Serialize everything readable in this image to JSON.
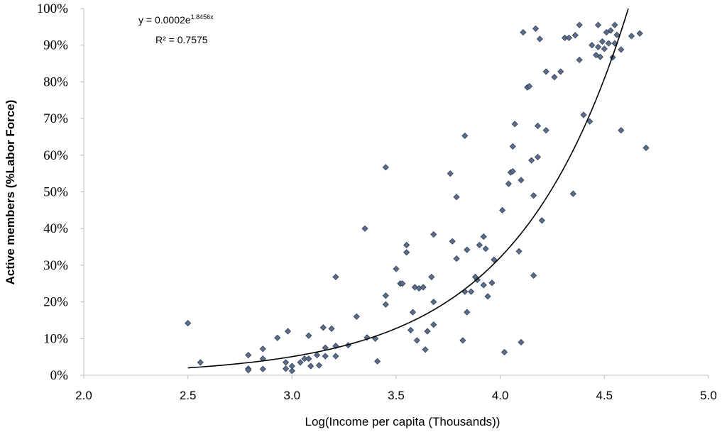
{
  "chart_data": {
    "type": "scatter",
    "xlabel": "Log(Income per capita (Thousands))",
    "ylabel": "Active members (%Labor Force)",
    "xlim": [
      2.0,
      5.0
    ],
    "ylim": [
      0,
      1.0
    ],
    "x_ticks": [
      "2.0",
      "2.5",
      "3.0",
      "3.5",
      "4.0",
      "4.5",
      "5.0"
    ],
    "y_ticks": [
      "0%",
      "10%",
      "20%",
      "30%",
      "40%",
      "50%",
      "60%",
      "70%",
      "80%",
      "90%",
      "100%"
    ],
    "grid": false,
    "marker_color": "#5b6f8c",
    "trendline": {
      "type": "exponential",
      "a": 0.0002,
      "b": 1.8456,
      "equation_base": "y = 0.0002e",
      "equation_exp": "1.8456x",
      "r2_text": "R² = 0.7575"
    },
    "points": [
      [
        2.5,
        0.142
      ],
      [
        2.56,
        0.035
      ],
      [
        2.79,
        0.055
      ],
      [
        2.79,
        0.018
      ],
      [
        2.79,
        0.014
      ],
      [
        2.86,
        0.072
      ],
      [
        2.86,
        0.045
      ],
      [
        2.86,
        0.017
      ],
      [
        2.93,
        0.102
      ],
      [
        2.97,
        0.035
      ],
      [
        2.97,
        0.018
      ],
      [
        2.98,
        0.12
      ],
      [
        3.0,
        0.025
      ],
      [
        3.0,
        0.012
      ],
      [
        3.04,
        0.035
      ],
      [
        3.06,
        0.045
      ],
      [
        3.08,
        0.108
      ],
      [
        3.08,
        0.045
      ],
      [
        3.09,
        0.025
      ],
      [
        3.12,
        0.055
      ],
      [
        3.13,
        0.027
      ],
      [
        3.15,
        0.13
      ],
      [
        3.16,
        0.075
      ],
      [
        3.16,
        0.052
      ],
      [
        3.19,
        0.127
      ],
      [
        3.21,
        0.268
      ],
      [
        3.21,
        0.08
      ],
      [
        3.21,
        0.052
      ],
      [
        3.27,
        0.082
      ],
      [
        3.31,
        0.16
      ],
      [
        3.35,
        0.4
      ],
      [
        3.36,
        0.103
      ],
      [
        3.4,
        0.1
      ],
      [
        3.41,
        0.038
      ],
      [
        3.45,
        0.567
      ],
      [
        3.45,
        0.217
      ],
      [
        3.45,
        0.193
      ],
      [
        3.5,
        0.29
      ],
      [
        3.52,
        0.25
      ],
      [
        3.53,
        0.25
      ],
      [
        3.55,
        0.355
      ],
      [
        3.55,
        0.335
      ],
      [
        3.57,
        0.123
      ],
      [
        3.58,
        0.172
      ],
      [
        3.59,
        0.24
      ],
      [
        3.6,
        0.095
      ],
      [
        3.61,
        0.237
      ],
      [
        3.63,
        0.24
      ],
      [
        3.64,
        0.07
      ],
      [
        3.65,
        0.12
      ],
      [
        3.67,
        0.268
      ],
      [
        3.68,
        0.384
      ],
      [
        3.68,
        0.2
      ],
      [
        3.68,
        0.138
      ],
      [
        3.76,
        0.55
      ],
      [
        3.77,
        0.365
      ],
      [
        3.79,
        0.486
      ],
      [
        3.79,
        0.318
      ],
      [
        3.82,
        0.095
      ],
      [
        3.83,
        0.653
      ],
      [
        3.83,
        0.228
      ],
      [
        3.84,
        0.172
      ],
      [
        3.84,
        0.342
      ],
      [
        3.86,
        0.228
      ],
      [
        3.88,
        0.268
      ],
      [
        3.89,
        0.26
      ],
      [
        3.9,
        0.355
      ],
      [
        3.92,
        0.378
      ],
      [
        3.92,
        0.246
      ],
      [
        3.93,
        0.345
      ],
      [
        3.94,
        0.215
      ],
      [
        3.96,
        0.252
      ],
      [
        3.97,
        0.315
      ],
      [
        4.01,
        0.45
      ],
      [
        4.02,
        0.063
      ],
      [
        4.04,
        0.522
      ],
      [
        4.05,
        0.553
      ],
      [
        4.06,
        0.556
      ],
      [
        4.06,
        0.624
      ],
      [
        4.07,
        0.685
      ],
      [
        4.09,
        0.338
      ],
      [
        4.1,
        0.532
      ],
      [
        4.1,
        0.09
      ],
      [
        4.11,
        0.935
      ],
      [
        4.13,
        0.785
      ],
      [
        4.14,
        0.788
      ],
      [
        4.15,
        0.586
      ],
      [
        4.16,
        0.49
      ],
      [
        4.16,
        0.272
      ],
      [
        4.17,
        0.945
      ],
      [
        4.18,
        0.68
      ],
      [
        4.18,
        0.595
      ],
      [
        4.19,
        0.917
      ],
      [
        4.2,
        0.422
      ],
      [
        4.22,
        0.828
      ],
      [
        4.22,
        0.668
      ],
      [
        4.26,
        0.813
      ],
      [
        4.29,
        0.828
      ],
      [
        4.31,
        0.92
      ],
      [
        4.33,
        0.92
      ],
      [
        4.35,
        0.495
      ],
      [
        4.36,
        0.927
      ],
      [
        4.38,
        0.86
      ],
      [
        4.38,
        0.955
      ],
      [
        4.4,
        0.71
      ],
      [
        4.43,
        0.692
      ],
      [
        4.44,
        0.9
      ],
      [
        4.46,
        0.873
      ],
      [
        4.47,
        0.955
      ],
      [
        4.47,
        0.895
      ],
      [
        4.48,
        0.868
      ],
      [
        4.49,
        0.91
      ],
      [
        4.5,
        0.89
      ],
      [
        4.51,
        0.935
      ],
      [
        4.52,
        0.905
      ],
      [
        4.53,
        0.94
      ],
      [
        4.54,
        0.867
      ],
      [
        4.55,
        0.905
      ],
      [
        4.55,
        0.955
      ],
      [
        4.56,
        0.928
      ],
      [
        4.58,
        0.888
      ],
      [
        4.58,
        0.668
      ],
      [
        4.63,
        0.925
      ],
      [
        4.67,
        0.932
      ],
      [
        4.7,
        0.62
      ]
    ]
  }
}
